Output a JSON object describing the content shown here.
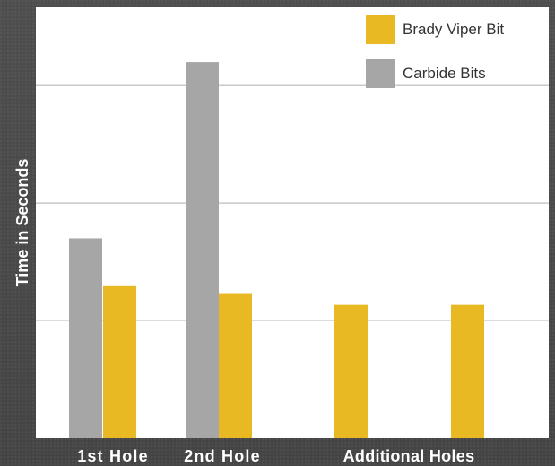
{
  "chart_data": {
    "type": "bar",
    "categories": [
      "1st Hole",
      "2nd Hole",
      "Additional Holes",
      ""
    ],
    "category_label": "Additional Holes",
    "series": [
      {
        "name": "Carbide Bits",
        "color": "#a7a6a7",
        "values": [
          5.1,
          9.6,
          null,
          null
        ]
      },
      {
        "name": "Brady Viper Bit",
        "color": "#e8b923",
        "values": [
          3.9,
          3.7,
          3.4,
          3.4
        ]
      }
    ],
    "xlabel": "",
    "ylabel": "Time in Seconds",
    "ylim": [
      0,
      11
    ],
    "y_gridlines": [
      3,
      6,
      9
    ],
    "y_tick_labels_shown": false,
    "grid": true,
    "legend_position": "top-right",
    "colors": {
      "plot_background": "#ffffff",
      "gridline": "#c8c8c8",
      "outer_background": "#4a4a4a",
      "axis_text": "#ffffff"
    }
  }
}
